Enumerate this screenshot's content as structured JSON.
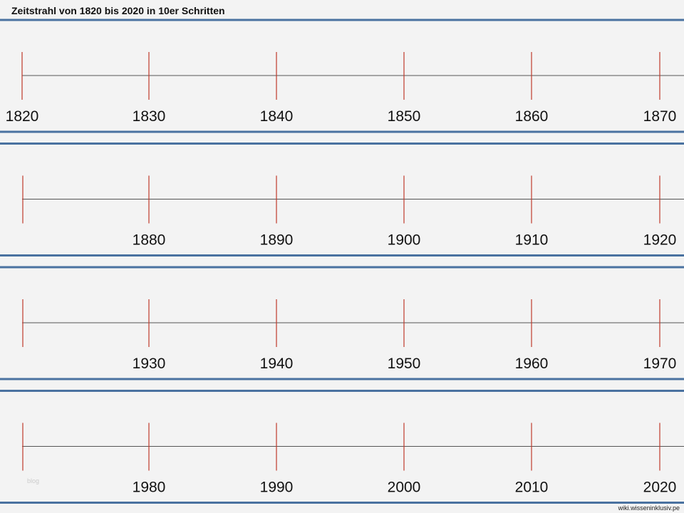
{
  "title": "Zeitstrahl von 1820 bis 2020 in 10er Schritten",
  "rows": [
    {
      "labels": [
        "1820",
        "1830",
        "1840",
        "1850",
        "1860",
        "1870"
      ]
    },
    {
      "labels": [
        null,
        "1880",
        "1890",
        "1900",
        "1910",
        "1920"
      ]
    },
    {
      "labels": [
        null,
        "1930",
        "1940",
        "1950",
        "1960",
        "1970"
      ]
    },
    {
      "labels": [
        null,
        "1980",
        "1990",
        "2000",
        "2010",
        "2020"
      ]
    }
  ],
  "watermark": "blog",
  "source": "wiki.wisseninklusiv.pe"
}
